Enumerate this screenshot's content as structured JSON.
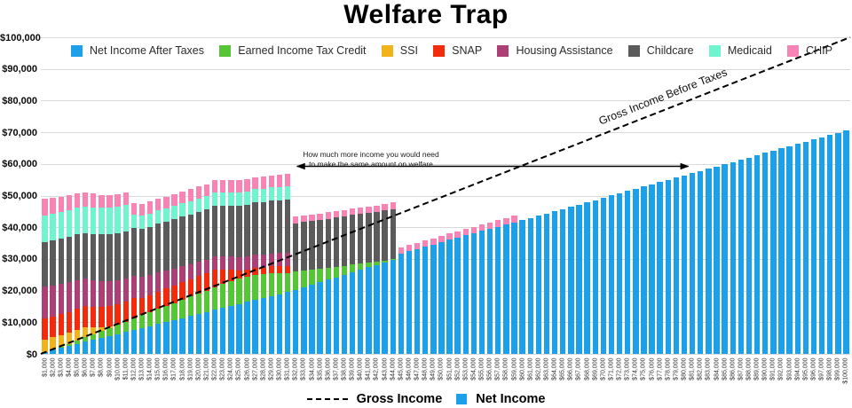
{
  "title": "Welfare Trap",
  "legend": {
    "items": [
      {
        "label": "Net Income After Taxes",
        "color": "#1CA0EA"
      },
      {
        "label": "Earned Income Tax Credit",
        "color": "#56C636"
      },
      {
        "label": "SSI",
        "color": "#F1B31C"
      },
      {
        "label": "SNAP",
        "color": "#F22B0D"
      },
      {
        "label": "Housing Assistance",
        "color": "#AC3F75"
      },
      {
        "label": "Childcare",
        "color": "#5B5B5B"
      },
      {
        "label": "Medicaid",
        "color": "#70F3CF"
      },
      {
        "label": "CHIP",
        "color": "#F784B5"
      }
    ]
  },
  "annotation": {
    "line1": "How much more income you would need",
    "line2": "to make the same amount on welfare"
  },
  "gross_line_label": "Gross Income Before Taxes",
  "bottom_legend": {
    "gross": "Gross Income",
    "net": "Net Income",
    "net_color": "#1CA0EA"
  },
  "chart_data": {
    "type": "bar",
    "stacked": true,
    "title": "Welfare Trap",
    "x_min": 1000,
    "x_max": 100000,
    "x_step": 1000,
    "x_tick_prefix": "$",
    "y_ticks": [
      0,
      10000,
      20000,
      30000,
      40000,
      50000,
      60000,
      70000,
      80000,
      90000,
      100000
    ],
    "ylim": [
      0,
      100000
    ],
    "grid": true,
    "legend_position": "top",
    "gross_line": {
      "label": "Gross Income Before Taxes",
      "style": "dashed",
      "x": [
        0,
        100000
      ],
      "y": [
        0,
        100000
      ]
    },
    "annotation_arrow": {
      "y": 57000,
      "x_from": 31000,
      "x_to": 80000
    },
    "series": [
      {
        "name": "Net Income After Taxes",
        "color": "#1CA0EA",
        "values": [
          600,
          1300,
          1900,
          2500,
          3200,
          3800,
          4400,
          5000,
          5700,
          6300,
          6900,
          7600,
          8200,
          8800,
          9500,
          10100,
          10700,
          11300,
          12000,
          12600,
          13200,
          13900,
          14500,
          15100,
          15800,
          16400,
          17000,
          17600,
          18300,
          18900,
          19500,
          20300,
          21100,
          21900,
          22600,
          23400,
          24200,
          25000,
          25800,
          26600,
          27400,
          28100,
          28900,
          29700,
          31700,
          32400,
          33100,
          33800,
          34500,
          35300,
          36000,
          36700,
          37400,
          38100,
          38800,
          39500,
          40200,
          40900,
          41600,
          42300,
          43000,
          43700,
          44400,
          45100,
          45800,
          46500,
          47200,
          47900,
          48600,
          49400,
          50100,
          50800,
          51500,
          52200,
          52900,
          53600,
          54300,
          55000,
          55700,
          56400,
          57100,
          57800,
          58500,
          59200,
          59900,
          60600,
          61300,
          62000,
          62700,
          63500,
          64200,
          64900,
          65600,
          66300,
          67000,
          67700,
          68400,
          69100,
          69800,
          70500
        ]
      },
      {
        "name": "Earned Income Tax Credit",
        "color": "#56C636",
        "values": [
          0,
          0,
          400,
          700,
          1100,
          1400,
          1800,
          2200,
          2500,
          2900,
          3200,
          3600,
          4000,
          4300,
          4700,
          5000,
          5400,
          5800,
          6100,
          6500,
          6800,
          7200,
          7600,
          7900,
          8000,
          8000,
          8000,
          7500,
          7100,
          6600,
          6100,
          5700,
          5200,
          4700,
          4200,
          3800,
          3300,
          2800,
          2400,
          1900,
          1400,
          900,
          500,
          200,
          0,
          0,
          0,
          0,
          0,
          0,
          0,
          0,
          0,
          0,
          0,
          0,
          0,
          0,
          0,
          0,
          0,
          0,
          0,
          0,
          0,
          0,
          0,
          0,
          0,
          0,
          0,
          0,
          0,
          0,
          0,
          0,
          0,
          0,
          0,
          0,
          0,
          0,
          0,
          0,
          0,
          0,
          0,
          0,
          0,
          0,
          0,
          0,
          0,
          0,
          0,
          0,
          0,
          0,
          0,
          0
        ]
      },
      {
        "name": "SSI",
        "color": "#F1B31C",
        "values": [
          4000,
          3900,
          3700,
          3600,
          3400,
          3300,
          2200,
          1200,
          500,
          0,
          0,
          0,
          0,
          0,
          0,
          0,
          0,
          0,
          0,
          0,
          0,
          0,
          0,
          0,
          0,
          0,
          0,
          0,
          0,
          0,
          0,
          0,
          0,
          0,
          0,
          0,
          0,
          0,
          0,
          0,
          0,
          0,
          0,
          0,
          0,
          0,
          0,
          0,
          0,
          0,
          0,
          0,
          0,
          0,
          0,
          0,
          0,
          0,
          0,
          0,
          0,
          0,
          0,
          0,
          0,
          0,
          0,
          0,
          0,
          0,
          0,
          0,
          0,
          0,
          0,
          0,
          0,
          0,
          0,
          0,
          0,
          0,
          0,
          0,
          0,
          0,
          0,
          0,
          0,
          0,
          0,
          0,
          0,
          0,
          0,
          0,
          0,
          0,
          0,
          0
        ]
      },
      {
        "name": "SNAP",
        "color": "#F22B0D",
        "values": [
          6500,
          6500,
          6500,
          6500,
          6500,
          6500,
          6500,
          6500,
          6500,
          6500,
          6500,
          6500,
          5500,
          5500,
          5500,
          5500,
          5500,
          5500,
          5500,
          5500,
          5500,
          5500,
          4500,
          3500,
          2500,
          2200,
          2200,
          2200,
          2200,
          2200,
          2200,
          0,
          0,
          0,
          0,
          0,
          0,
          0,
          0,
          0,
          0,
          0,
          0,
          0,
          0,
          0,
          0,
          0,
          0,
          0,
          0,
          0,
          0,
          0,
          0,
          0,
          0,
          0,
          0,
          0,
          0,
          0,
          0,
          0,
          0,
          0,
          0,
          0,
          0,
          0,
          0,
          0,
          0,
          0,
          0,
          0,
          0,
          0,
          0,
          0,
          0,
          0,
          0,
          0,
          0,
          0,
          0,
          0,
          0,
          0,
          0,
          0,
          0,
          0,
          0,
          0,
          0,
          0,
          0,
          0
        ]
      },
      {
        "name": "Housing Assistance",
        "color": "#AC3F75",
        "values": [
          10200,
          9900,
          9600,
          9300,
          9000,
          8700,
          8400,
          8100,
          7800,
          7500,
          7200,
          6900,
          6600,
          6300,
          6000,
          5700,
          5400,
          5100,
          4800,
          4500,
          4200,
          4200,
          4200,
          4200,
          4200,
          4200,
          4200,
          4200,
          4200,
          4200,
          4200,
          0,
          0,
          0,
          0,
          0,
          0,
          0,
          0,
          0,
          0,
          0,
          0,
          0,
          0,
          0,
          0,
          0,
          0,
          0,
          0,
          0,
          0,
          0,
          0,
          0,
          0,
          0,
          0,
          0,
          0,
          0,
          0,
          0,
          0,
          0,
          0,
          0,
          0,
          0,
          0,
          0,
          0,
          0,
          0,
          0,
          0,
          0,
          0,
          0,
          0,
          0,
          0,
          0,
          0,
          0,
          0,
          0,
          0,
          0,
          0,
          0,
          0,
          0,
          0,
          0,
          0,
          0,
          0,
          0
        ]
      },
      {
        "name": "Childcare",
        "color": "#5B5B5B",
        "values": [
          14100,
          14200,
          14300,
          14400,
          14500,
          14500,
          14600,
          14700,
          14800,
          14900,
          15000,
          15100,
          15200,
          15300,
          15400,
          15400,
          15500,
          15600,
          15700,
          15800,
          15900,
          16000,
          16100,
          16200,
          16300,
          16300,
          16400,
          16500,
          16600,
          16700,
          16800,
          15300,
          15400,
          15400,
          15500,
          15500,
          15600,
          15600,
          15700,
          15700,
          15800,
          15800,
          15900,
          15900,
          0,
          0,
          0,
          0,
          0,
          0,
          0,
          0,
          0,
          0,
          0,
          0,
          0,
          0,
          0,
          0,
          0,
          0,
          0,
          0,
          0,
          0,
          0,
          0,
          0,
          0,
          0,
          0,
          0,
          0,
          0,
          0,
          0,
          0,
          0,
          0,
          0,
          0,
          0,
          0,
          0,
          0,
          0,
          0,
          0,
          0,
          0,
          0,
          0,
          0,
          0,
          0,
          0,
          0,
          0,
          0
        ]
      },
      {
        "name": "Medicaid",
        "color": "#70F3CF",
        "values": [
          8400,
          8400,
          8400,
          8400,
          8400,
          8400,
          8400,
          8400,
          8400,
          8400,
          8400,
          4200,
          4200,
          4200,
          4200,
          4200,
          4200,
          4200,
          4200,
          4200,
          4200,
          4200,
          4200,
          4200,
          4200,
          4200,
          4200,
          4200,
          4200,
          4200,
          4200,
          0,
          0,
          0,
          0,
          0,
          0,
          0,
          0,
          0,
          0,
          0,
          0,
          0,
          0,
          0,
          0,
          0,
          0,
          0,
          0,
          0,
          0,
          0,
          0,
          0,
          0,
          0,
          0,
          0,
          0,
          0,
          0,
          0,
          0,
          0,
          0,
          0,
          0,
          0,
          0,
          0,
          0,
          0,
          0,
          0,
          0,
          0,
          0,
          0,
          0,
          0,
          0,
          0,
          0,
          0,
          0,
          0,
          0,
          0,
          0,
          0,
          0,
          0,
          0,
          0,
          0,
          0,
          0,
          0
        ]
      },
      {
        "name": "CHIP",
        "color": "#F784B5",
        "values": [
          5200,
          5100,
          4900,
          4800,
          4600,
          4500,
          4300,
          4200,
          4000,
          3900,
          3800,
          3800,
          3800,
          3800,
          3800,
          3800,
          3800,
          3800,
          3800,
          3800,
          3800,
          3800,
          3800,
          3800,
          3800,
          3800,
          3800,
          3800,
          3800,
          3800,
          3800,
          2000,
          2000,
          2000,
          2000,
          2000,
          2000,
          2000,
          2000,
          2000,
          2000,
          2000,
          2000,
          2000,
          2000,
          2000,
          2000,
          2000,
          2000,
          2000,
          2000,
          2000,
          2000,
          2000,
          2000,
          2000,
          2000,
          2000,
          2000,
          0,
          0,
          0,
          0,
          0,
          0,
          0,
          0,
          0,
          0,
          0,
          0,
          0,
          0,
          0,
          0,
          0,
          0,
          0,
          0,
          0,
          0,
          0,
          0,
          0,
          0,
          0,
          0,
          0,
          0,
          0,
          0,
          0,
          0,
          0,
          0,
          0,
          0,
          0,
          0,
          0
        ]
      }
    ]
  }
}
